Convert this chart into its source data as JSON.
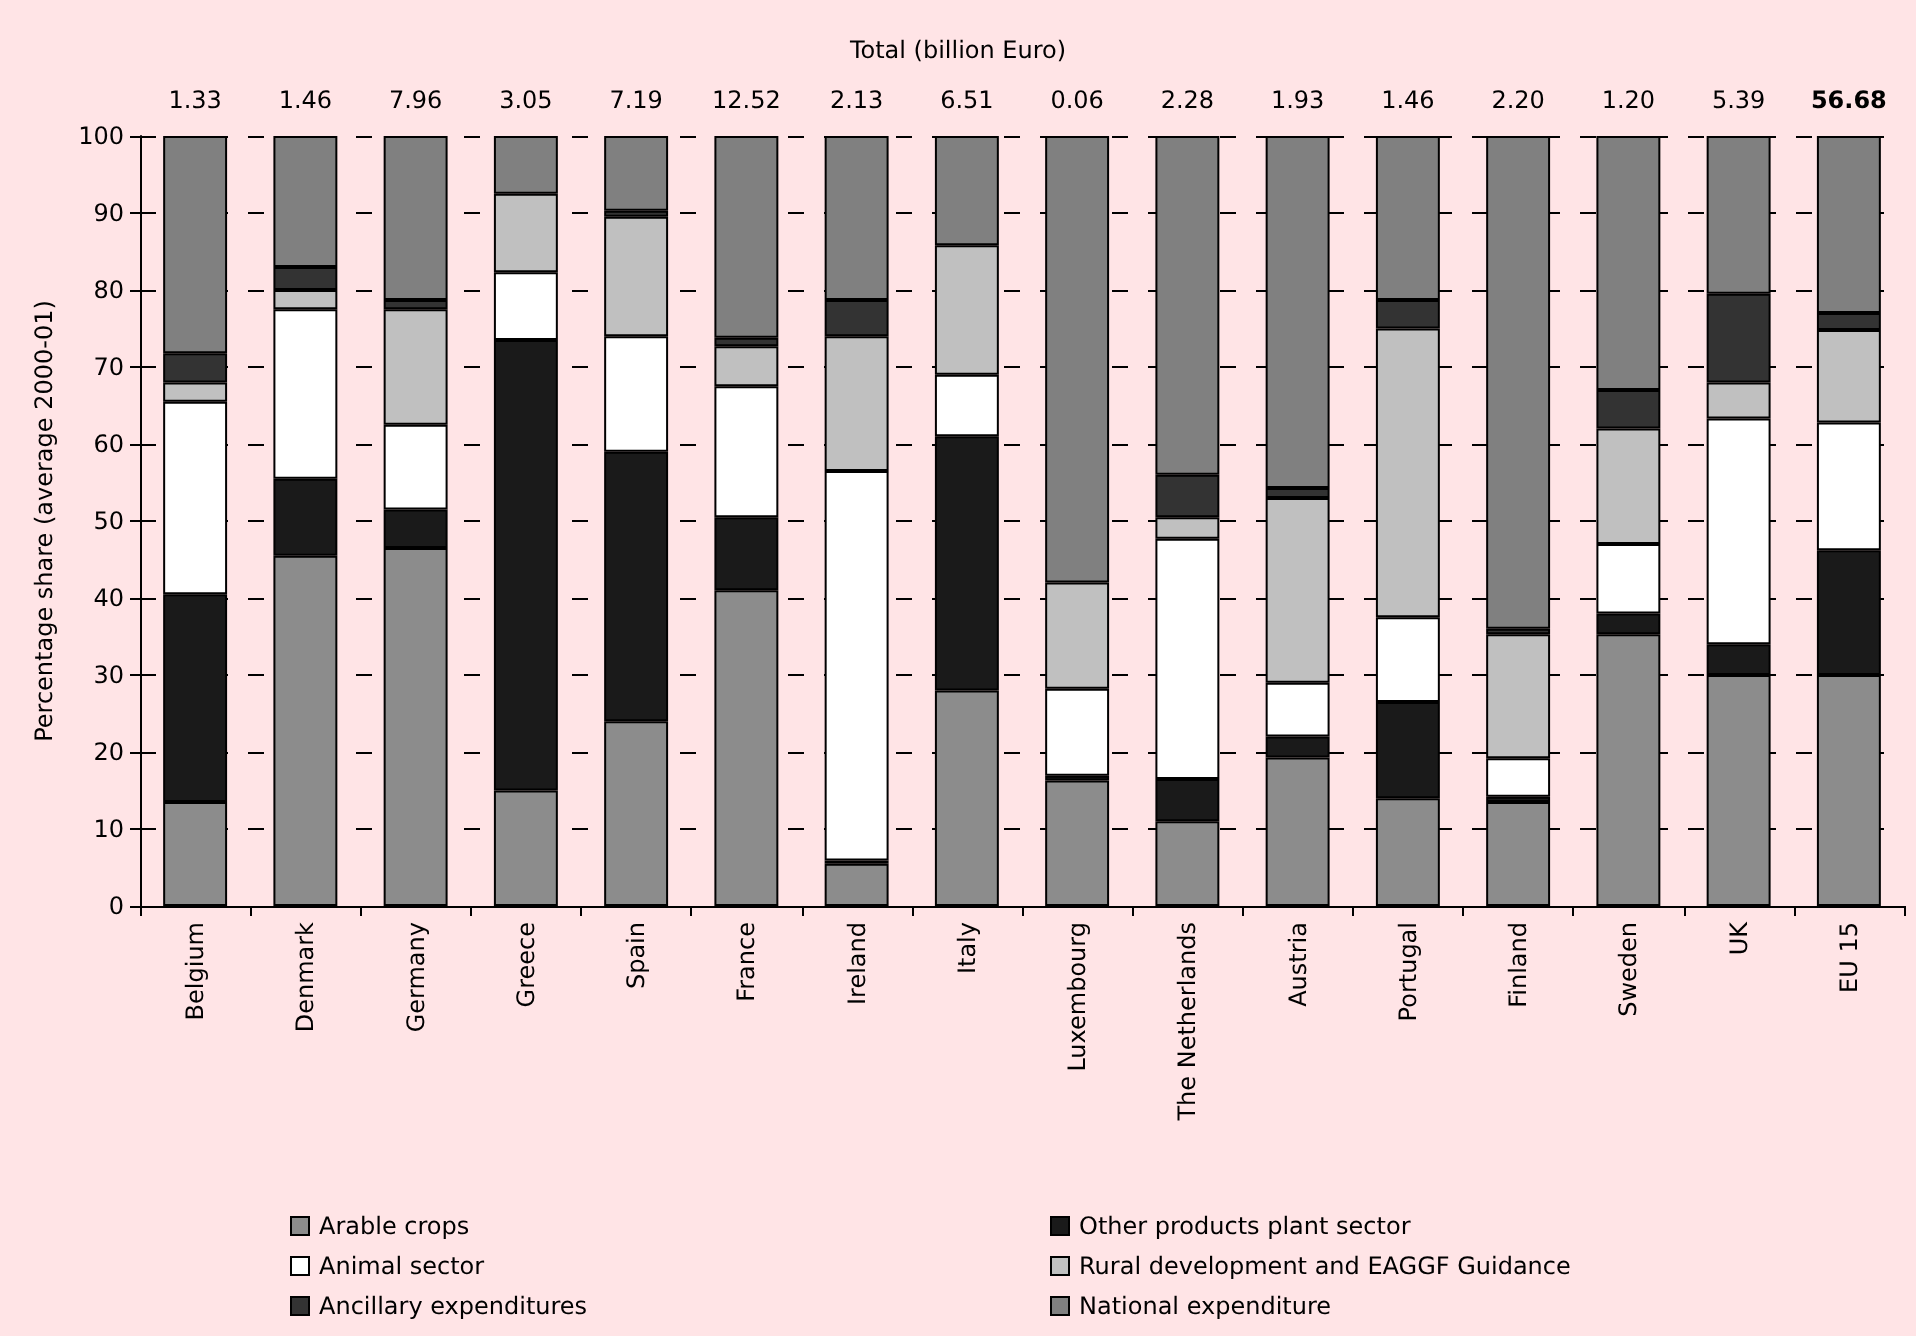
{
  "chart_data": {
    "type": "bar",
    "title": "Total (billion Euro)",
    "ylabel": "Percentage share (average 2000-01)",
    "stacked": true,
    "categories": [
      "Belgium",
      "Denmark",
      "Germany",
      "Greece",
      "Spain",
      "France",
      "Ireland",
      "Italy",
      "Luxembourg",
      "The Netherlands",
      "Austria",
      "Portugal",
      "Finland",
      "Sweden",
      "UK",
      "EU 15"
    ],
    "annotations": [
      {
        "text": "1.33",
        "x": "Belgium",
        "y": 100
      },
      {
        "text": "1.46",
        "x": "Denmark",
        "y": 100
      },
      {
        "text": "7.96",
        "x": "Germany",
        "y": 100
      },
      {
        "text": "3.05",
        "x": "Greece",
        "y": 100
      },
      {
        "text": "7.19",
        "x": "Spain",
        "y": 100
      },
      {
        "text": "12.52",
        "x": "France",
        "y": 100
      },
      {
        "text": "2.13",
        "x": "Ireland",
        "y": 100
      },
      {
        "text": "6.51",
        "x": "Italy",
        "y": 100
      },
      {
        "text": "0.06",
        "x": "Luxembourg",
        "y": 100
      },
      {
        "text": "2.28",
        "x": "The Netherlands",
        "y": 100
      },
      {
        "text": "1.93",
        "x": "Austria",
        "y": 100
      },
      {
        "text": "1.46",
        "x": "Portugal",
        "y": 100
      },
      {
        "text": "2.20",
        "x": "Finland",
        "y": 100
      },
      {
        "text": "1.20",
        "x": "Sweden",
        "y": 100
      },
      {
        "text": "5.39",
        "x": "UK",
        "y": 100
      },
      {
        "text": "56.68",
        "x": "EU 15",
        "y": 100
      }
    ],
    "series": [
      {
        "name": "Arable crops",
        "color": "#8c8c8c",
        "values": [
          13.5,
          45.5,
          46.5,
          15,
          24,
          41,
          5.5,
          28,
          16.3,
          11,
          19.3,
          14,
          13.5,
          35.3,
          30,
          30
        ]
      },
      {
        "name": "Other products plant sector",
        "color": "#1a1a1a",
        "values": [
          27,
          10,
          5,
          58.5,
          35,
          9.5,
          0.4,
          33,
          0.6,
          5.5,
          2.7,
          12.5,
          0.7,
          2.7,
          4,
          16.2
        ]
      },
      {
        "name": "Animal sector",
        "color": "#ffffff",
        "values": [
          25,
          22,
          11,
          8.8,
          15,
          17,
          50.6,
          8,
          11.3,
          31.2,
          7,
          11,
          5,
          9,
          29.3,
          16.6
        ]
      },
      {
        "name": "Rural development and EAGGF Guidance",
        "color": "#c0c0c0",
        "values": [
          2.5,
          2.5,
          15,
          10.2,
          15.5,
          5.2,
          17.5,
          16.8,
          13.8,
          2.8,
          24,
          37.5,
          16.1,
          15,
          4.7,
          12
        ]
      },
      {
        "name": "Ancillary expenditures",
        "color": "#333333",
        "values": [
          3.8,
          3,
          1.2,
          0,
          0.8,
          1.1,
          4.7,
          0,
          0,
          5.5,
          1.3,
          3.7,
          0.7,
          5,
          11.5,
          2.2
        ]
      },
      {
        "name": "National expenditure",
        "color": "#808080",
        "values": [
          28.2,
          17,
          21.3,
          7.5,
          9.7,
          26.2,
          21.3,
          14.2,
          58,
          44,
          45.7,
          21.3,
          64,
          33,
          20.5,
          23
        ]
      }
    ],
    "ylim": [
      0,
      100
    ],
    "yticks": [
      0,
      10,
      20,
      30,
      40,
      50,
      60,
      70,
      80,
      90,
      100
    ],
    "grid": "y",
    "legend": "bottom"
  }
}
